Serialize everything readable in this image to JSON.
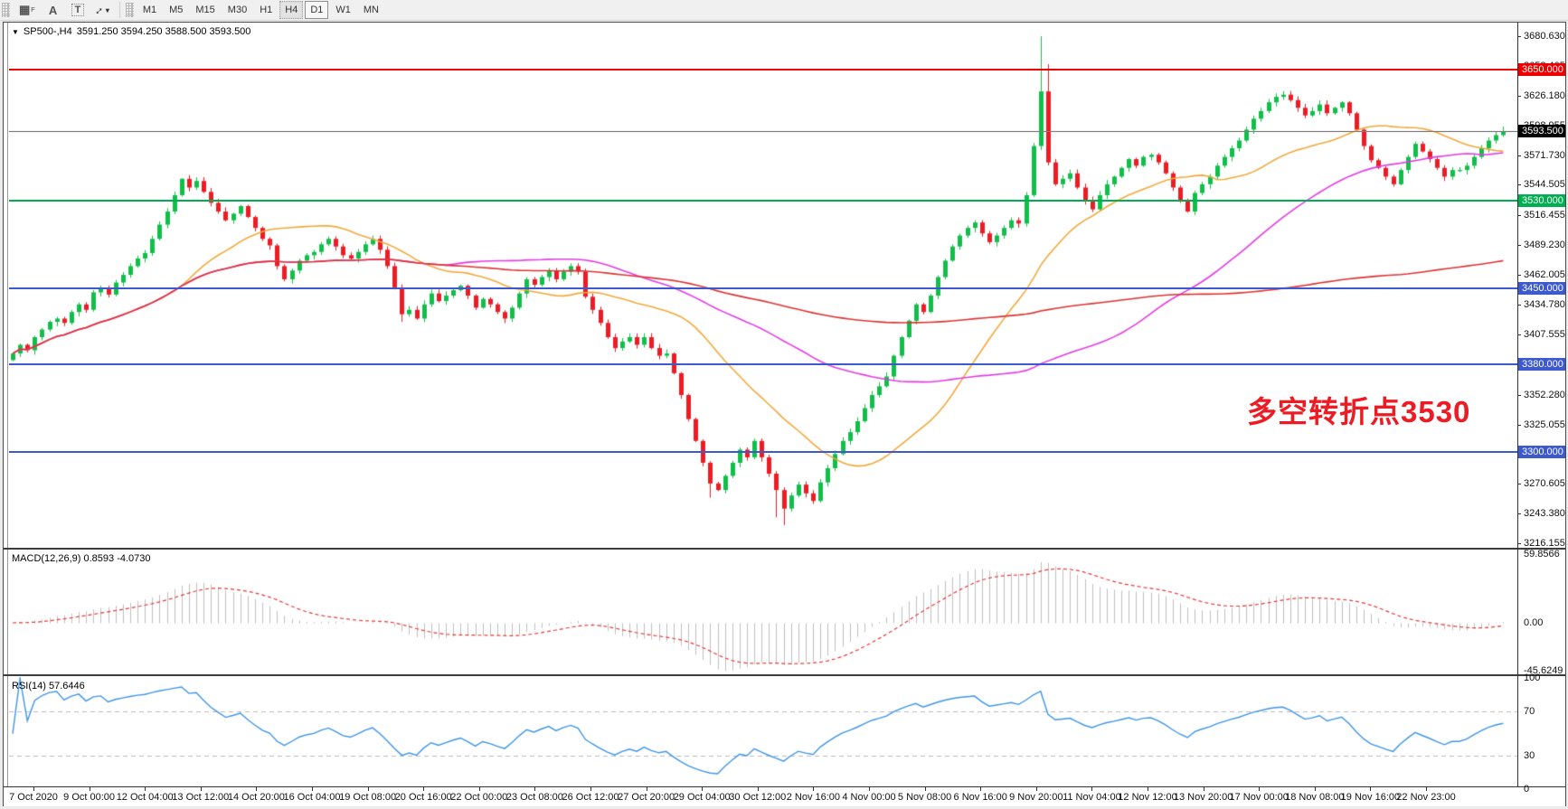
{
  "toolbar": {
    "tools": [
      {
        "name": "grid-frame-tool",
        "glyph": "▦",
        "sub": "F"
      },
      {
        "name": "label-tool",
        "glyph": "A",
        "sub": ""
      },
      {
        "name": "textbox-tool",
        "glyph": "T",
        "sub": ""
      },
      {
        "name": "arrows-tool",
        "glyph": "↕",
        "sub": "",
        "caret": "▾"
      }
    ],
    "timeframes": [
      {
        "label": "M1",
        "state": ""
      },
      {
        "label": "M5",
        "state": ""
      },
      {
        "label": "M15",
        "state": ""
      },
      {
        "label": "M30",
        "state": ""
      },
      {
        "label": "H1",
        "state": ""
      },
      {
        "label": "H4",
        "state": "active"
      },
      {
        "label": "D1",
        "state": "outlined"
      },
      {
        "label": "W1",
        "state": ""
      },
      {
        "label": "MN",
        "state": ""
      }
    ]
  },
  "header": {
    "collapse_glyph": "▼",
    "symbol_title": "SP500-,H4",
    "ohlc": "3591.250 3594.250 3588.500 3593.500"
  },
  "annotation": {
    "text": "多空转折点3530",
    "color": "#ed1c24"
  },
  "macd_panel": {
    "label": "MACD(12,26,9)",
    "main_value": "0.8593",
    "signal_value": "-4.0730",
    "scale": [
      {
        "text": "59.8566",
        "page_y": 613
      },
      {
        "text": "0.00",
        "page_y": 689
      },
      {
        "text": "-45.6249",
        "page_y": 742
      }
    ]
  },
  "rsi_panel": {
    "label": "RSI(14)",
    "value": "57.6446",
    "scale": [
      {
        "text": "100",
        "v": 100
      },
      {
        "text": "70",
        "v": 70
      },
      {
        "text": "30",
        "v": 30
      },
      {
        "text": "0",
        "v": 0
      }
    ],
    "dashed_levels": [
      70,
      30
    ]
  },
  "colors": {
    "candle_up": "#10bf4a",
    "candle_down": "#ed1c24",
    "ma_fast": "#f2a93b",
    "ma_mid": "#e33be3",
    "ma_slow": "#dd3333",
    "line_red": "#ee0000",
    "line_green": "#00b050",
    "line_blue": "#3c59cd",
    "current_line": "#808080",
    "current_badge_bg": "#000000",
    "hist": "#bfbfbf",
    "macd_signal": "#e53935",
    "rsi_line": "#3f95e8",
    "badge_red_bg": "#ee0000",
    "badge_green_bg": "#00b050",
    "badge_blue_bg": "#3c59cd"
  },
  "price_axis": {
    "tick_labels": [
      "3680.630",
      "3653.405",
      "3626.180",
      "3598.955",
      "3571.730",
      "3544.505",
      "3516.455",
      "3489.230",
      "3462.005",
      "3434.780",
      "3407.555",
      "3352.280",
      "3325.055",
      "3297.830",
      "3270.605",
      "3243.380",
      "3216.155"
    ]
  },
  "hlines": [
    {
      "price": 3650.0,
      "badge": "3650.000",
      "kind": "resistance",
      "color_key": "line_red",
      "thickness": 2
    },
    {
      "price": 3593.5,
      "badge": "3593.500",
      "kind": "current",
      "color_key": "current_line",
      "thickness": 1
    },
    {
      "price": 3530.0,
      "badge": "3530.000",
      "kind": "pivot",
      "color_key": "line_green",
      "thickness": 2
    },
    {
      "price": 3450.0,
      "badge": "3450.000",
      "kind": "support",
      "color_key": "line_blue",
      "thickness": 2
    },
    {
      "price": 3380.0,
      "badge": "3380.000",
      "kind": "support",
      "color_key": "line_blue",
      "thickness": 2
    },
    {
      "price": 3300.0,
      "badge": "3300.000",
      "kind": "support",
      "color_key": "line_blue",
      "thickness": 2
    }
  ],
  "date_axis": [
    "7 Oct 2020",
    "9 Oct 00:00",
    "12 Oct 04:00",
    "13 Oct 12:00",
    "14 Oct 20:00",
    "16 Oct 04:00",
    "19 Oct 08:00",
    "20 Oct 16:00",
    "22 Oct 00:00",
    "23 Oct 08:00",
    "26 Oct 12:00",
    "27 Oct 20:00",
    "29 Oct 04:00",
    "30 Oct 12:00",
    "2 Nov 16:00",
    "4 Nov 00:00",
    "5 Nov 08:00",
    "6 Nov 16:00",
    "9 Nov 20:00",
    "11 Nov 04:00",
    "12 Nov 12:00",
    "13 Nov 20:00",
    "17 Nov 00:00",
    "18 Nov 08:00",
    "19 Nov 16:00",
    "22 Nov 23:00"
  ],
  "chart_data": {
    "type": "candlestick",
    "symbol": "SP500",
    "timeframe": "H4",
    "x_range": [
      "7 Oct 2020",
      "22 Nov 23:00"
    ],
    "y_axis_top": 3680.63,
    "y_axis_bottom": 3216.155,
    "current_close": 3593.5,
    "open_first": 3384,
    "closes": [
      3390,
      3398,
      3393,
      3405,
      3412,
      3419,
      3422,
      3418,
      3428,
      3435,
      3430,
      3446,
      3450,
      3444,
      3455,
      3462,
      3470,
      3477,
      3482,
      3495,
      3508,
      3520,
      3535,
      3550,
      3542,
      3548,
      3538,
      3528,
      3520,
      3512,
      3518,
      3525,
      3515,
      3505,
      3495,
      3489,
      3470,
      3458,
      3466,
      3475,
      3480,
      3483,
      3490,
      3495,
      3488,
      3480,
      3477,
      3483,
      3490,
      3495,
      3485,
      3470,
      3450,
      3426,
      3430,
      3422,
      3435,
      3445,
      3438,
      3443,
      3448,
      3452,
      3443,
      3432,
      3440,
      3435,
      3428,
      3422,
      3432,
      3445,
      3458,
      3453,
      3460,
      3466,
      3458,
      3465,
      3470,
      3465,
      3442,
      3430,
      3418,
      3405,
      3395,
      3401,
      3405,
      3398,
      3405,
      3395,
      3388,
      3390,
      3372,
      3352,
      3330,
      3310,
      3290,
      3271,
      3265,
      3278,
      3290,
      3302,
      3295,
      3310,
      3295,
      3280,
      3265,
      3248,
      3260,
      3270,
      3262,
      3255,
      3272,
      3285,
      3298,
      3310,
      3318,
      3328,
      3340,
      3352,
      3360,
      3369,
      3388,
      3405,
      3420,
      3435,
      3428,
      3443,
      3460,
      3475,
      3488,
      3498,
      3505,
      3510,
      3500,
      3492,
      3498,
      3505,
      3512,
      3509,
      3535,
      3580,
      3630,
      3565,
      3545,
      3550,
      3555,
      3542,
      3530,
      3522,
      3535,
      3545,
      3552,
      3560,
      3568,
      3562,
      3570,
      3572,
      3565,
      3555,
      3542,
      3530,
      3520,
      3537,
      3545,
      3552,
      3562,
      3570,
      3578,
      3585,
      3595,
      3605,
      3612,
      3620,
      3625,
      3627,
      3622,
      3615,
      3608,
      3612,
      3618,
      3610,
      3615,
      3620,
      3610,
      3595,
      3580,
      3567,
      3560,
      3552,
      3545,
      3558,
      3570,
      3582,
      3575,
      3568,
      3560,
      3552,
      3558,
      3558,
      3562,
      3570,
      3578,
      3585,
      3590,
      3593.5
    ],
    "wick_overrides": {
      "23": {
        "high": 3550.5
      },
      "53": {
        "low": 3419
      },
      "95": {
        "low": 3258
      },
      "104": {
        "low": 3240
      },
      "105": {
        "low": 3233
      },
      "140": {
        "high": 3680.6
      },
      "141": {
        "high": 3655
      },
      "203": {
        "high": 3597.8
      }
    },
    "moving_averages": [
      {
        "name": "fast",
        "period": 24,
        "color_key": "ma_fast"
      },
      {
        "name": "mid",
        "period": 60,
        "color_key": "ma_mid"
      },
      {
        "name": "slow",
        "period": 140,
        "color_key": "ma_slow"
      }
    ],
    "indicators": [
      {
        "name": "MACD",
        "fast": 12,
        "slow": 26,
        "signal": 9,
        "last_main": 0.8593,
        "last_signal": -4.073,
        "scale_max": 59.8566,
        "scale_min": -45.6249
      },
      {
        "name": "RSI",
        "period": 14,
        "last": 57.6446,
        "levels": [
          70,
          30
        ]
      }
    ]
  }
}
